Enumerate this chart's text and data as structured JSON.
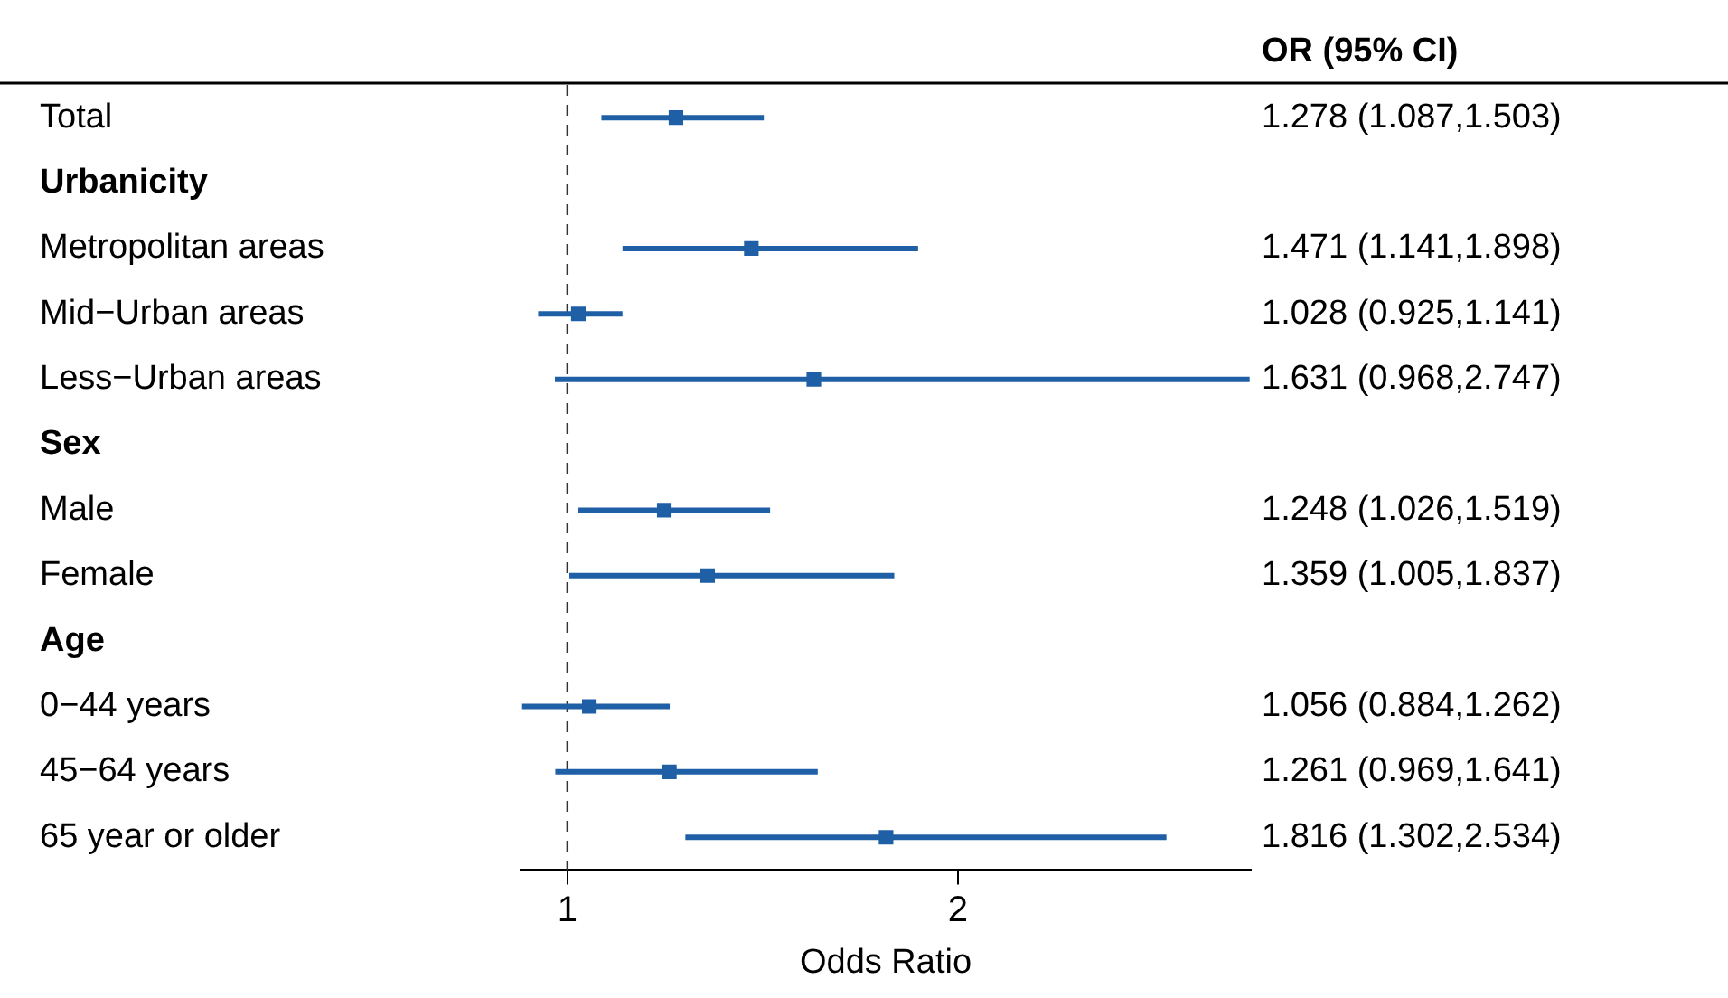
{
  "chart_data": {
    "type": "scatter",
    "orientation": "horizontal",
    "categories": [
      "Total",
      "Urbanicity",
      "Metropolitan areas",
      "Mid−Urban areas",
      "Less−Urban areas",
      "Sex",
      "Male",
      "Female",
      "Age",
      "0−44 years",
      "45−64 years",
      "65 year or older"
    ],
    "values": [
      1.278,
      null,
      1.471,
      1.028,
      1.631,
      null,
      1.248,
      1.359,
      null,
      1.056,
      1.261,
      1.816
    ],
    "errors": [
      [
        1.087,
        1.503
      ],
      null,
      [
        1.141,
        1.898
      ],
      [
        0.925,
        1.141
      ],
      [
        0.968,
        2.747
      ],
      null,
      [
        1.026,
        1.519
      ],
      [
        1.005,
        1.837
      ],
      null,
      [
        0.884,
        1.262
      ],
      [
        0.969,
        1.641
      ],
      [
        1.302,
        2.534
      ]
    ],
    "value_labels": [
      "1.278 (1.087,1.503)",
      null,
      "1.471 (1.141,1.898)",
      "1.028 (0.925,1.141)",
      "1.631 (0.968,2.747)",
      null,
      "1.248 (1.026,1.519)",
      "1.359 (1.005,1.837)",
      null,
      "1.056 (0.884,1.262)",
      "1.261 (0.969,1.641)",
      "1.816 (1.302,2.534)"
    ],
    "color": "#1f5fa6",
    "marker": "square",
    "grid": false,
    "legend": false,
    "xlim": [
      0.88,
      2.75
    ],
    "xticks": [
      1,
      2
    ],
    "xlabel": "Odds Ratio",
    "ref_lines": [
      {
        "axis": "x",
        "value": 1,
        "line_style": "dashed",
        "color": "#333333"
      }
    ],
    "annotations": [
      "OR (95% CI)"
    ]
  }
}
